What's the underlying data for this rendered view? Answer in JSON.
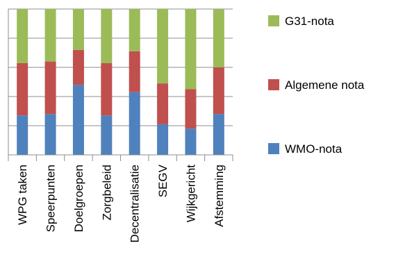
{
  "chart_data": {
    "type": "bar",
    "stacked": true,
    "normalized_to_percent": true,
    "categories": [
      "WPG taken",
      "Speerpunten",
      "Doelgroepen",
      "Zorgbeleid",
      "Decentralisatie",
      "SEGV",
      "Wijkgericht",
      "Afstemming"
    ],
    "series": [
      {
        "name": "WMO-nota",
        "color": "#4f81bd",
        "values": [
          27,
          28,
          48,
          27,
          43,
          21,
          18,
          28
        ]
      },
      {
        "name": "Algemene nota",
        "color": "#c0504d",
        "values": [
          36,
          36,
          24,
          36,
          28,
          28,
          27,
          32
        ]
      },
      {
        "name": "G31-nota",
        "color": "#9bbb59",
        "values": [
          37,
          36,
          28,
          37,
          29,
          51,
          55,
          40
        ]
      }
    ],
    "legend_order": [
      "G31-nota",
      "Algemene nota",
      "WMO-nota"
    ],
    "ylim": [
      0,
      100
    ],
    "gridlines": true,
    "legend_position": "right"
  }
}
